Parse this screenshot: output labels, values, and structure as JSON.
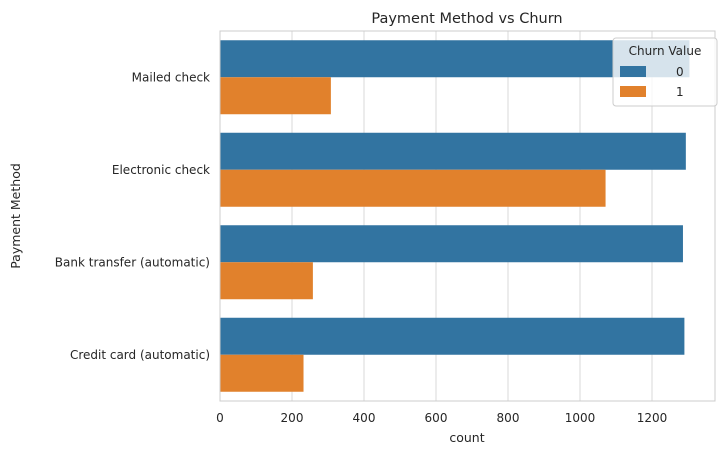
{
  "chart_data": {
    "type": "bar",
    "orientation": "horizontal",
    "title": "Payment Method vs Churn",
    "xlabel": "count",
    "ylabel": "Payment Method",
    "xlim": [
      0,
      1375
    ],
    "xticks": [
      0,
      200,
      400,
      600,
      800,
      1000,
      1200
    ],
    "grid": true,
    "categories": [
      "Mailed check",
      "Electronic check",
      "Bank transfer (automatic)",
      "Credit card (automatic)"
    ],
    "series": [
      {
        "name": "0",
        "color": "#3274a1",
        "values": [
          1304,
          1294,
          1286,
          1290
        ]
      },
      {
        "name": "1",
        "color": "#e1812c",
        "values": [
          308,
          1071,
          258,
          232
        ]
      }
    ],
    "legend": {
      "title": "Churn Value",
      "position": "top-right"
    }
  }
}
